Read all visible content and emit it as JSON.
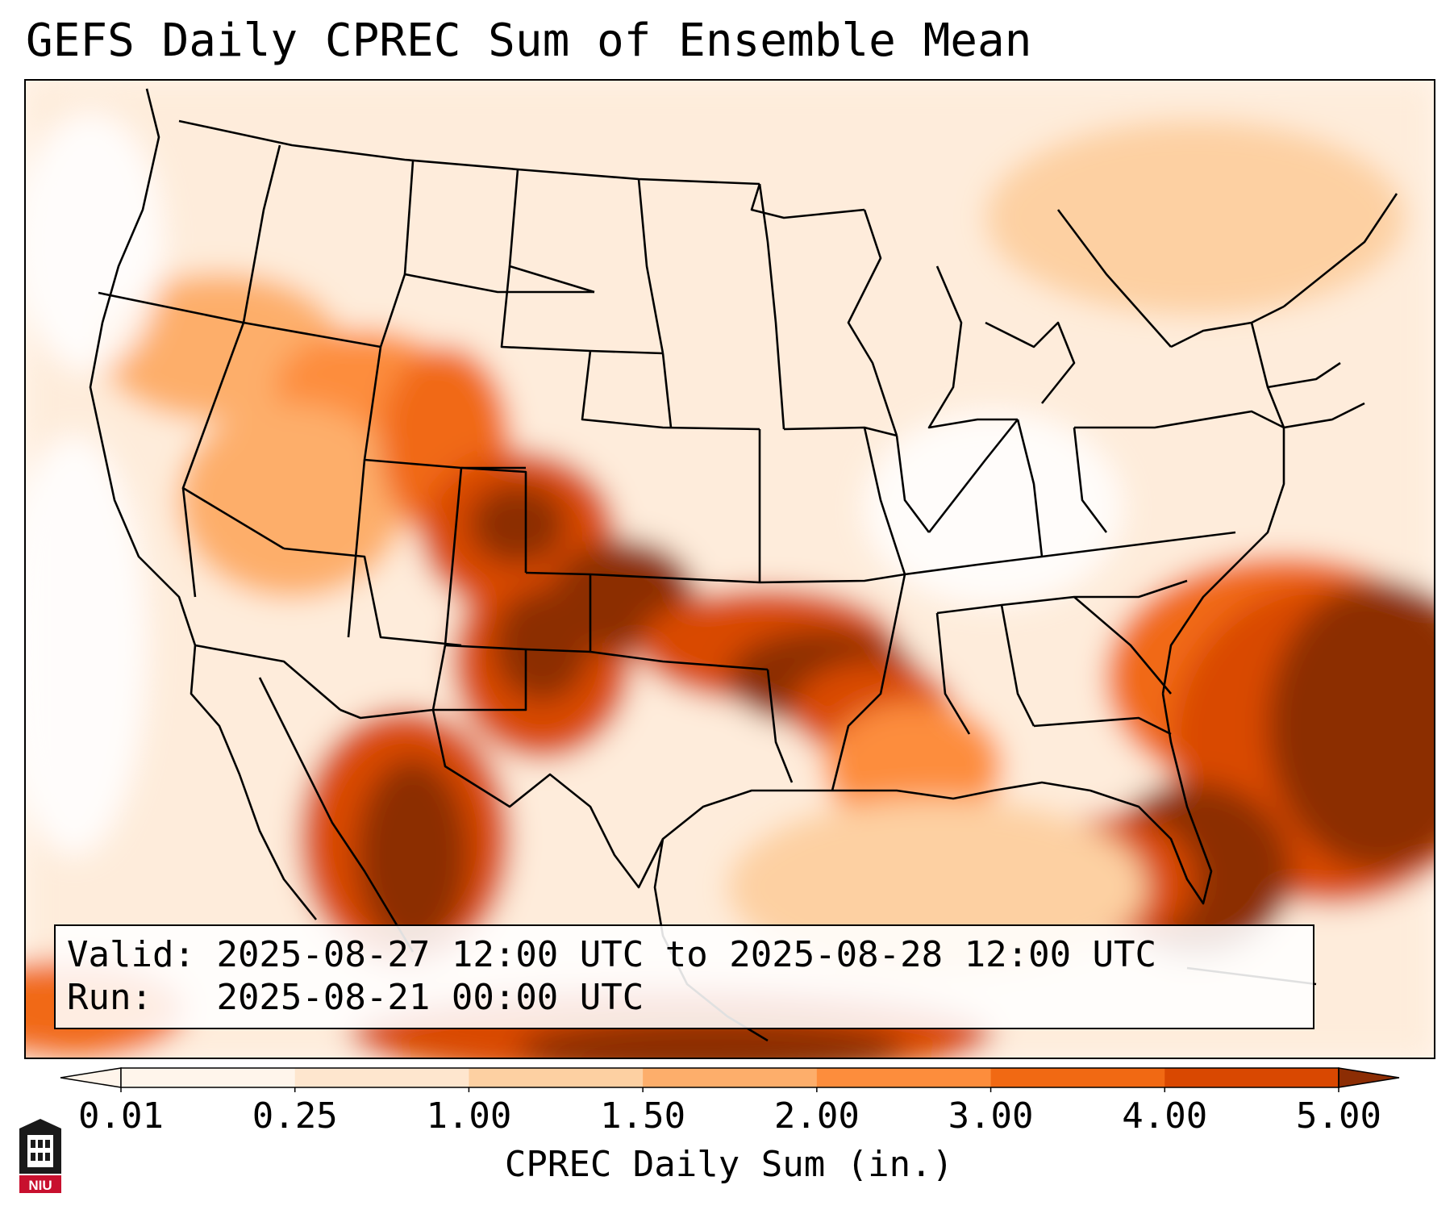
{
  "title": "GEFS Daily CPREC Sum of Ensemble Mean",
  "info": {
    "valid_label": "Valid:",
    "valid_value": "2025-08-27 12:00 UTC to 2025-08-28 12:00 UTC",
    "run_label": "Run:",
    "run_value": "2025-08-21 00:00 UTC"
  },
  "colorbar": {
    "label": "CPREC Daily Sum (in.)",
    "ticks": [
      "0.01",
      "0.25",
      "1.00",
      "1.50",
      "2.00",
      "3.00",
      "4.00",
      "5.00"
    ],
    "colors": [
      "#fff5eb",
      "#fee6ce",
      "#fdd0a2",
      "#fdae6b",
      "#fd8d3c",
      "#f16913",
      "#d94801",
      "#8c2d04"
    ]
  },
  "logo": {
    "text": "NIU",
    "color": "#c8102e"
  }
}
